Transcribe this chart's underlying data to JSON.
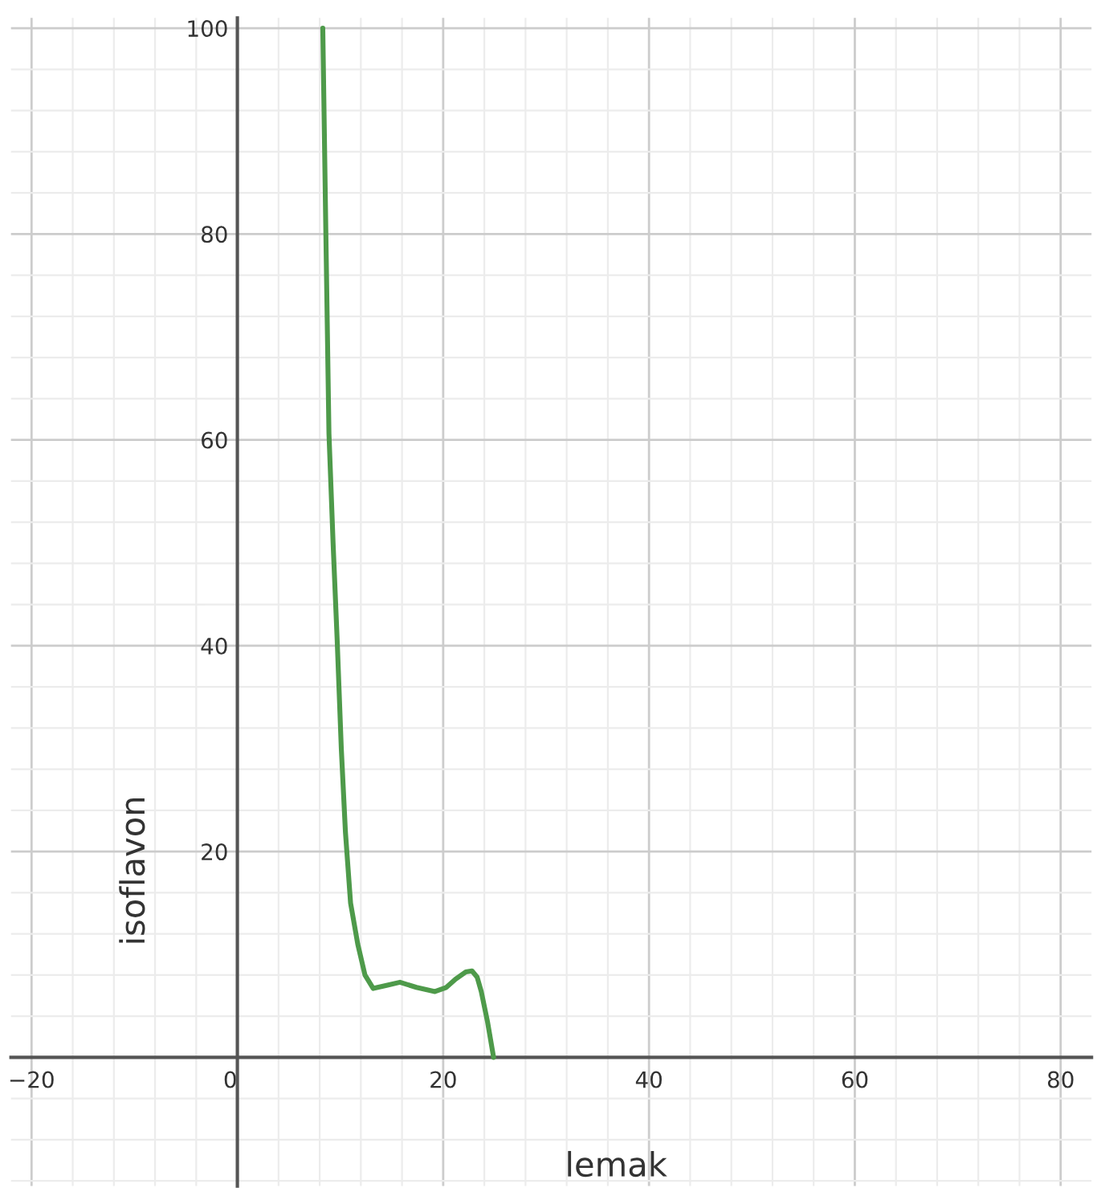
{
  "chart_data": {
    "type": "line",
    "xlabel": "lemak",
    "ylabel": "isoflavon",
    "xlim": [
      -22,
      83
    ],
    "ylim": [
      -12.5,
      101
    ],
    "xticks": [
      {
        "value": -20,
        "label": "−20"
      },
      0,
      20,
      40,
      60,
      80
    ],
    "yticks": [
      {
        "value": 0,
        "label": null
      },
      20,
      40,
      60,
      80,
      100
    ],
    "grid": true,
    "marker": "none",
    "line_style": "solid",
    "series": [
      {
        "color": "#4e9a4a",
        "x": [
          8.3,
          8.6,
          8.9,
          9.3,
          9.7,
          10.1,
          10.5,
          11.0,
          11.7,
          12.4,
          13.2,
          14.5,
          15.8,
          17.4,
          19.2,
          20.3,
          21.2,
          22.2,
          22.8,
          23.3,
          23.7,
          24.3,
          24.9
        ],
        "values": [
          100,
          80,
          60.6,
          50,
          40.5,
          30,
          21.9,
          15,
          11,
          8,
          6.7,
          7,
          7.3,
          6.8,
          6.4,
          6.8,
          7.6,
          8.3,
          8.4,
          7.8,
          6.4,
          3.5,
          0
        ]
      }
    ]
  }
}
